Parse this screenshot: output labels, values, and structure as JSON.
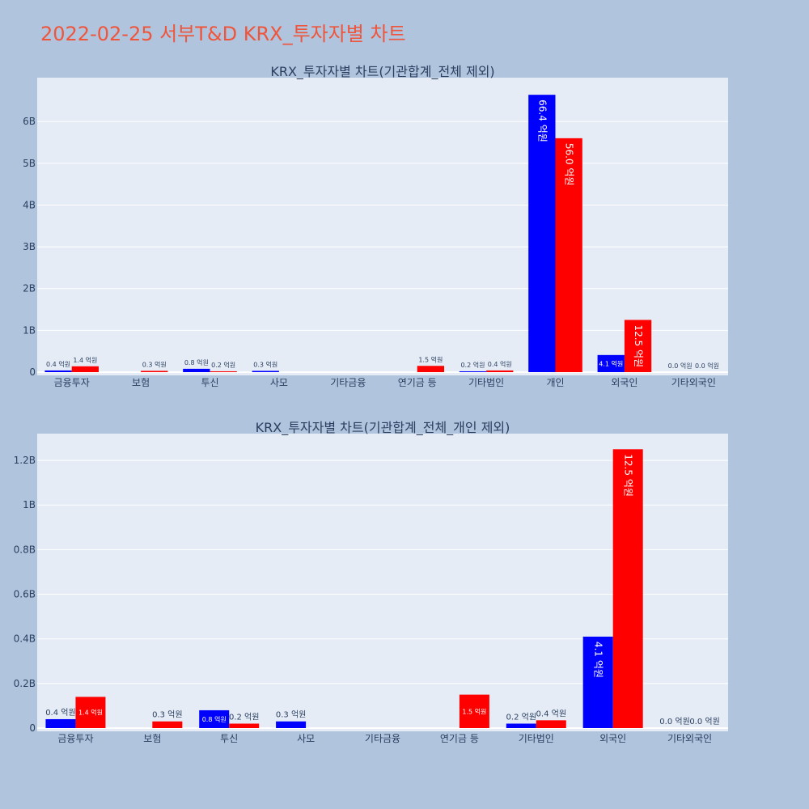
{
  "page": {
    "title": "2022-02-25 서부T&D KRX_투자자별 차트"
  },
  "colors": {
    "background": "#b0c4de",
    "plot_background": "#e5ecf6",
    "grid": "#ffffff",
    "title": "#ef553b",
    "text": "#2a3f5f",
    "series_blue": "#0000ff",
    "series_red": "#ff0000"
  },
  "chart_data": [
    {
      "type": "bar",
      "title": "KRX_투자자별 차트(기관합계_전체 제외)",
      "categories": [
        "금융투자",
        "보험",
        "투신",
        "사모",
        "기타금융",
        "연기금 등",
        "기타법인",
        "개인",
        "외국인",
        "기타외국인"
      ],
      "series": [
        {
          "color": "#0000ff",
          "values": [
            0.04,
            0,
            0.08,
            0.03,
            0,
            0,
            0.02,
            6.64,
            0.41,
            0.0
          ],
          "labels": [
            "0.4 억원",
            "",
            "0.8 억원",
            "0.3 억원",
            "",
            "",
            "0.2 억원",
            "66.4 억원",
            "4.1 억원",
            "0.0 억원"
          ]
        },
        {
          "color": "#ff0000",
          "values": [
            0.14,
            0.03,
            0.02,
            0,
            0,
            0.15,
            0.04,
            5.6,
            1.25,
            0.0
          ],
          "labels": [
            "1.4 억원",
            "0.3 억원",
            "0.2 억원",
            "",
            "",
            "1.5 억원",
            "0.4 억원",
            "56.0 억원",
            "12.5 억원",
            "0.0 억원"
          ]
        }
      ],
      "yticks": [
        0,
        1,
        2,
        3,
        4,
        5,
        6
      ],
      "ytick_labels": [
        "0",
        "1B",
        "2B",
        "3B",
        "4B",
        "5B",
        "6B"
      ],
      "ylim": [
        0,
        7.05
      ],
      "grid": true,
      "xlabel": "",
      "ylabel": ""
    },
    {
      "type": "bar",
      "title": "KRX_투자자별 차트(기관합계_전체_개인 제외)",
      "categories": [
        "금융투자",
        "보험",
        "투신",
        "사모",
        "기타금융",
        "연기금 등",
        "기타법인",
        "외국인",
        "기타외국인"
      ],
      "series": [
        {
          "color": "#0000ff",
          "values": [
            0.04,
            0,
            0.08,
            0.03,
            0,
            0,
            0.02,
            0.41,
            0.0
          ],
          "labels": [
            "0.4 억원",
            "",
            "0.8 억원",
            "0.3 억원",
            "",
            "",
            "0.2 억원",
            "4.1 억원",
            "0.0 억원"
          ]
        },
        {
          "color": "#ff0000",
          "values": [
            0.14,
            0.03,
            0.02,
            0,
            0,
            0.15,
            0.035,
            1.25,
            0.0
          ],
          "labels": [
            "1.4 억원",
            "0.3 억원",
            "0.2 억원",
            "",
            "",
            "1.5 억원",
            "0.4 억원",
            "12.5 억원",
            "0.0 억원"
          ]
        }
      ],
      "yticks": [
        0,
        0.2,
        0.4,
        0.6,
        0.8,
        1.0,
        1.2
      ],
      "ytick_labels": [
        "0",
        "0.2B",
        "0.4B",
        "0.6B",
        "0.8B",
        "1B",
        "1.2B"
      ],
      "ylim": [
        0,
        1.32
      ],
      "grid": true,
      "xlabel": "",
      "ylabel": ""
    }
  ]
}
